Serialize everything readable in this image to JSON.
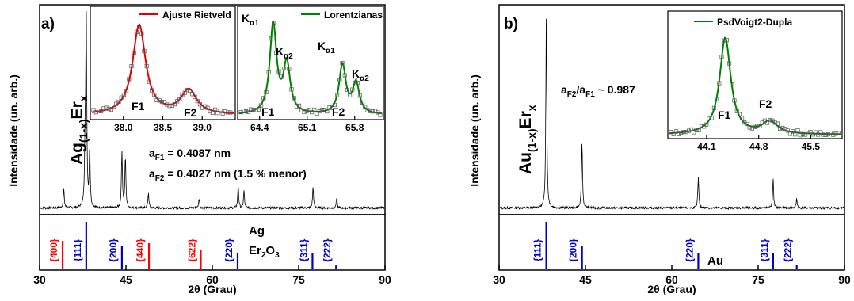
{
  "chart_data": [
    {
      "panel_label": "a)",
      "type": "line",
      "ylabel": "Intensidade (un. arb.)",
      "xlabel": "2θ (Grau)",
      "xlim": [
        30,
        90
      ],
      "xticks": [
        "30",
        "45",
        "60",
        "75",
        "90"
      ],
      "sample": {
        "base": "Ag",
        "sub": "(1-x)",
        "tail": "Er",
        "tail_sub": "x"
      },
      "peaks": [
        {
          "x": 34.2,
          "h": 0.1
        },
        {
          "x": 37.9,
          "h": 0.3
        },
        {
          "x": 38.1,
          "h": 1.0
        },
        {
          "x": 38.7,
          "h": 0.3
        },
        {
          "x": 44.3,
          "h": 0.3
        },
        {
          "x": 44.9,
          "h": 0.27
        },
        {
          "x": 48.9,
          "h": 0.08
        },
        {
          "x": 57.7,
          "h": 0.05
        },
        {
          "x": 64.5,
          "h": 0.12
        },
        {
          "x": 65.5,
          "h": 0.09
        },
        {
          "x": 77.5,
          "h": 0.11
        },
        {
          "x": 81.6,
          "h": 0.05
        }
      ],
      "annotations": {
        "a1_label": "a",
        "a1_sub": "F1",
        "a1_val": " = 0.4087 nm",
        "a2_label": "a",
        "a2_sub": "F2",
        "a2_val": " = 0.4027 nm (1.5 % menor)"
      },
      "reference_lines": [
        {
          "x": 34.0,
          "label": "{400}",
          "color": "#ff0000",
          "h": 0.6
        },
        {
          "x": 38.1,
          "label": "{111}",
          "color": "#0000cc",
          "h": 1.0
        },
        {
          "x": 44.3,
          "label": "{200}",
          "color": "#0000cc",
          "h": 0.5
        },
        {
          "x": 49.0,
          "label": "{440}",
          "color": "#ff0000",
          "h": 0.55
        },
        {
          "x": 58.0,
          "label": "{622}",
          "color": "#ff0000",
          "h": 0.4
        },
        {
          "x": 64.4,
          "label": "{220}",
          "color": "#0000cc",
          "h": 0.35
        },
        {
          "x": 77.4,
          "label": "{311}",
          "color": "#0000cc",
          "h": 0.35
        },
        {
          "x": 81.5,
          "label": "{222}",
          "color": "#0000cc",
          "h": 0.08
        }
      ],
      "ref_legend": [
        {
          "text": "Ag",
          "color": "#0000cc"
        },
        {
          "text": "Er",
          "sub": "2",
          "tail": "O",
          "tail_sub": "3",
          "color": "#ff0000"
        }
      ],
      "insets": [
        {
          "legend": "Ajuste Rietveld",
          "color": "#e00000",
          "xlim": [
            37.6,
            39.4
          ],
          "xticks": [
            "38.0",
            "38.5",
            "39.0"
          ],
          "tick_values": [
            38.0,
            38.5,
            39.0
          ],
          "peaks": [
            {
              "x": 38.2,
              "h": 1.0,
              "w": 0.1
            },
            {
              "x": 38.83,
              "h": 0.27,
              "w": 0.12
            }
          ],
          "labels": [
            {
              "text": "F1"
            },
            {
              "text": "F2"
            }
          ]
        },
        {
          "legend": "Lorentzianas",
          "color": "#008000",
          "xlim": [
            64.1,
            66.2
          ],
          "xticks": [
            "64.4",
            "65.1",
            "65.8"
          ],
          "tick_values": [
            64.4,
            65.1,
            65.8
          ],
          "peaks": [
            {
              "x": 64.6,
              "h": 1.0,
              "w": 0.06
            },
            {
              "x": 64.8,
              "h": 0.55,
              "w": 0.06
            },
            {
              "x": 65.62,
              "h": 0.55,
              "w": 0.06
            },
            {
              "x": 65.82,
              "h": 0.34,
              "w": 0.06
            }
          ],
          "labels": [
            {
              "text": "F1"
            },
            {
              "text": "F2"
            }
          ],
          "k_labels": [
            {
              "k": "K",
              "sub": "α1"
            },
            {
              "k": "K",
              "sub": "α2"
            },
            {
              "k": "K",
              "sub": "α1"
            },
            {
              "k": "K",
              "sub": "α2"
            }
          ]
        }
      ]
    },
    {
      "panel_label": "b)",
      "type": "line",
      "ylabel": "Intensidade (un. arb.)",
      "xlabel": "2θ (Grau)",
      "xlim": [
        30,
        90
      ],
      "xticks": [
        "30",
        "45",
        "60",
        "75",
        "90"
      ],
      "sample": {
        "base": "Au",
        "sub": "(1-x)",
        "tail": "Er",
        "tail_sub": "x"
      },
      "ratio": {
        "a": "a",
        "sub1": "F2",
        "slash": "/a",
        "sub2": "F1",
        "val": " ~ 0.987"
      },
      "peaks": [
        {
          "x": 38.2,
          "h": 1.0
        },
        {
          "x": 44.4,
          "h": 0.35
        },
        {
          "x": 64.6,
          "h": 0.16
        },
        {
          "x": 77.6,
          "h": 0.15
        },
        {
          "x": 81.7,
          "h": 0.05
        }
      ],
      "reference_lines": [
        {
          "x": 38.2,
          "label": "{111}",
          "color": "#0000cc",
          "h": 1.0
        },
        {
          "x": 44.4,
          "label": "{200}",
          "color": "#0000cc",
          "h": 0.5
        },
        {
          "x": 64.6,
          "label": "{220}",
          "color": "#0000cc",
          "h": 0.35
        },
        {
          "x": 77.6,
          "label": "{311}",
          "color": "#0000cc",
          "h": 0.35
        },
        {
          "x": 81.7,
          "label": "{222}",
          "color": "#0000cc",
          "h": 0.1
        }
      ],
      "ref_legend": [
        {
          "text": "Au",
          "color": "#0000cc"
        }
      ],
      "insets": [
        {
          "legend": "PsdVoigt2-Dupla",
          "color": "#008000",
          "xlim": [
            43.6,
            45.9
          ],
          "xticks": [
            "44.1",
            "44.8",
            "45.5"
          ],
          "tick_values": [
            44.1,
            44.8,
            45.5
          ],
          "peaks": [
            {
              "x": 44.35,
              "h": 1.0,
              "w": 0.09
            },
            {
              "x": 44.95,
              "h": 0.13,
              "w": 0.12
            }
          ],
          "labels": [
            {
              "text": "F1"
            },
            {
              "text": "F2"
            }
          ]
        }
      ]
    }
  ]
}
